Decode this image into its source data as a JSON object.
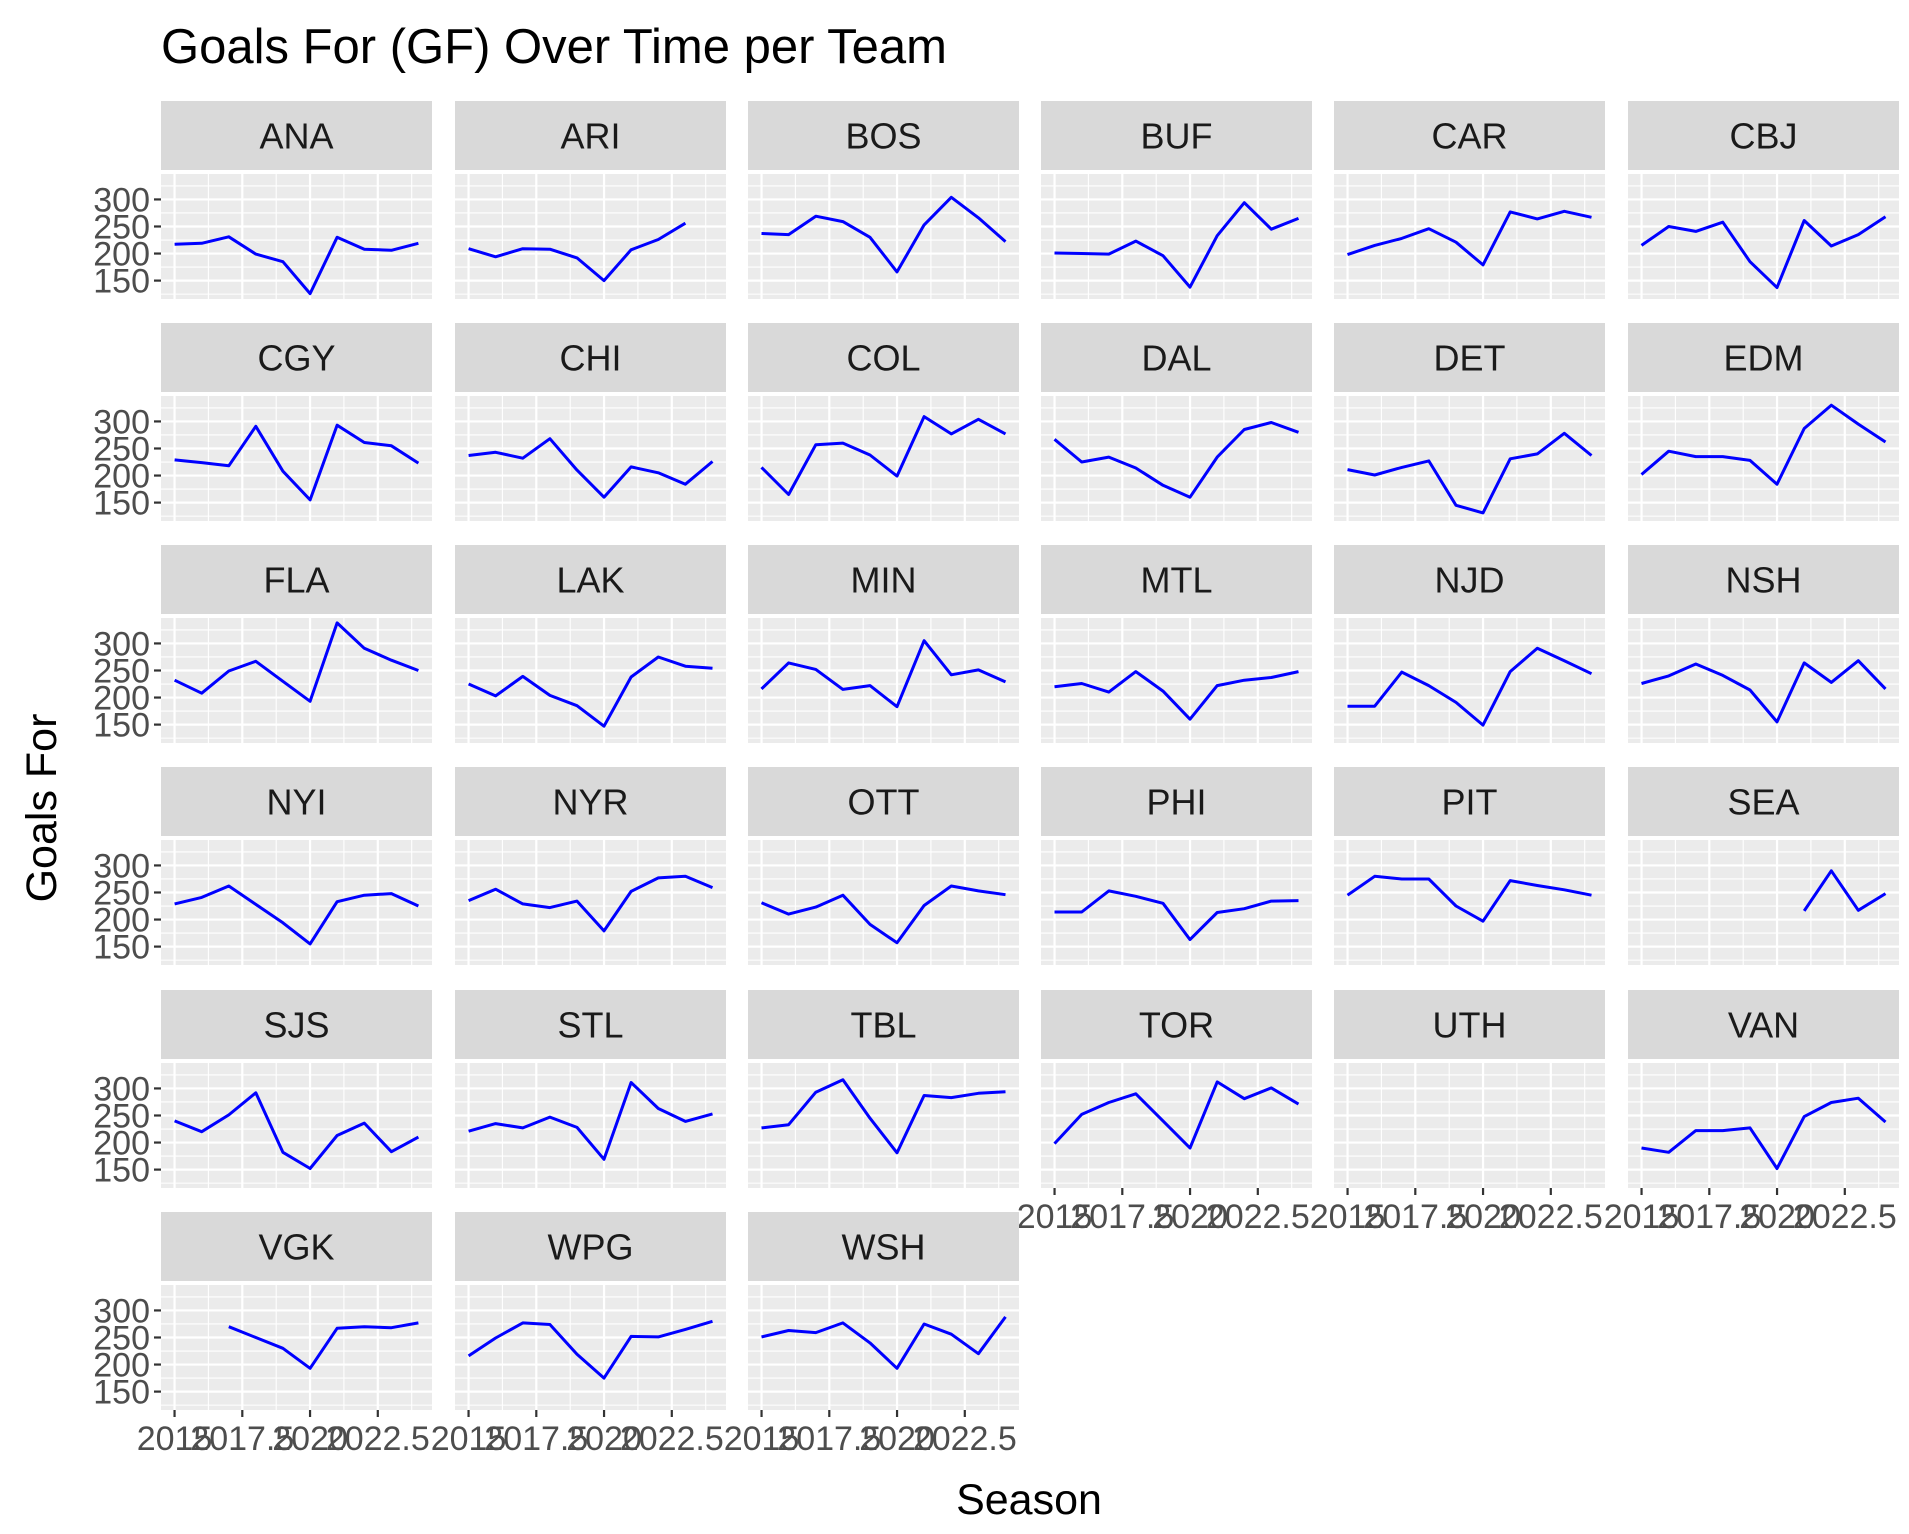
{
  "chart_data": {
    "type": "line",
    "title": "Goals For (GF) Over Time per Team",
    "xlabel": "Season",
    "ylabel": "Goals For",
    "line_color": "#0000ff",
    "panel_background": "#ebebeb",
    "strip_background": "#d9d9d9",
    "grid": true,
    "facet_layout": {
      "columns": 6,
      "rows": 6
    },
    "xlim": [
      2014.5,
      2024.5
    ],
    "ylim": [
      116,
      347
    ],
    "x_ticks": [
      2015,
      2017.5,
      2020,
      2022.5
    ],
    "x_tick_labels": [
      "2015",
      "2017.5",
      "2020",
      "2022.5"
    ],
    "y_ticks": [
      150,
      200,
      250,
      300
    ],
    "y_tick_labels": [
      "150",
      "200",
      "250",
      "300"
    ],
    "x": [
      2015,
      2016,
      2017,
      2018,
      2019,
      2020,
      2021,
      2022,
      2023,
      2024
    ],
    "panels": [
      {
        "team": "ANA",
        "values": [
          217,
          219,
          231,
          199,
          185,
          126,
          230,
          208,
          206,
          219
        ]
      },
      {
        "team": "ARI",
        "values": [
          209,
          194,
          209,
          208,
          192,
          150,
          207,
          226,
          256,
          null
        ]
      },
      {
        "team": "BOS",
        "values": [
          237,
          235,
          269,
          259,
          230,
          166,
          253,
          304,
          266,
          222
        ]
      },
      {
        "team": "BUF",
        "values": [
          201,
          200,
          199,
          223,
          196,
          138,
          233,
          294,
          245,
          265
        ]
      },
      {
        "team": "CAR",
        "values": [
          198,
          215,
          228,
          246,
          221,
          179,
          277,
          264,
          278,
          267
        ]
      },
      {
        "team": "CBJ",
        "values": [
          215,
          250,
          241,
          258,
          185,
          137,
          261,
          214,
          235,
          268
        ]
      },
      {
        "team": "CGY",
        "values": [
          229,
          224,
          218,
          291,
          208,
          155,
          293,
          261,
          255,
          223
        ]
      },
      {
        "team": "CHI",
        "values": [
          237,
          243,
          232,
          268,
          210,
          160,
          216,
          205,
          184,
          226
        ]
      },
      {
        "team": "COL",
        "values": [
          215,
          165,
          257,
          260,
          238,
          199,
          309,
          277,
          304,
          277
        ]
      },
      {
        "team": "DAL",
        "values": [
          267,
          225,
          234,
          214,
          182,
          160,
          234,
          285,
          298,
          280
        ]
      },
      {
        "team": "DET",
        "values": [
          211,
          201,
          215,
          227,
          145,
          131,
          231,
          240,
          278,
          237
        ]
      },
      {
        "team": "EDM",
        "values": [
          202,
          245,
          235,
          235,
          228,
          184,
          287,
          330,
          295,
          262
        ]
      },
      {
        "team": "FLA",
        "values": [
          232,
          208,
          249,
          267,
          230,
          193,
          338,
          291,
          269,
          250
        ]
      },
      {
        "team": "LAK",
        "values": [
          225,
          203,
          239,
          204,
          185,
          147,
          238,
          275,
          258,
          254
        ]
      },
      {
        "team": "MIN",
        "values": [
          216,
          264,
          252,
          215,
          222,
          183,
          305,
          242,
          251,
          229
        ]
      },
      {
        "team": "MTL",
        "values": [
          220,
          226,
          210,
          248,
          212,
          160,
          222,
          232,
          237,
          248
        ]
      },
      {
        "team": "NJD",
        "values": [
          184,
          184,
          247,
          222,
          191,
          149,
          248,
          291,
          268,
          244
        ]
      },
      {
        "team": "NSH",
        "values": [
          226,
          240,
          262,
          241,
          214,
          155,
          264,
          228,
          268,
          216
        ]
      },
      {
        "team": "NYI",
        "values": [
          229,
          241,
          262,
          228,
          194,
          155,
          233,
          245,
          248,
          225
        ]
      },
      {
        "team": "NYR",
        "values": [
          235,
          256,
          229,
          222,
          234,
          179,
          252,
          277,
          280,
          259
        ]
      },
      {
        "team": "OTT",
        "values": [
          231,
          210,
          223,
          245,
          191,
          157,
          226,
          262,
          253,
          246
        ]
      },
      {
        "team": "PHI",
        "values": [
          214,
          214,
          253,
          243,
          230,
          163,
          213,
          220,
          234,
          235
        ]
      },
      {
        "team": "PIT",
        "values": [
          245,
          280,
          275,
          275,
          225,
          197,
          272,
          263,
          255,
          245
        ]
      },
      {
        "team": "SEA",
        "values": [
          null,
          null,
          null,
          null,
          null,
          null,
          216,
          290,
          217,
          248
        ]
      },
      {
        "team": "SJS",
        "values": [
          240,
          220,
          251,
          292,
          182,
          152,
          213,
          236,
          183,
          210
        ]
      },
      {
        "team": "STL",
        "values": [
          221,
          235,
          227,
          247,
          228,
          169,
          311,
          263,
          239,
          253
        ]
      },
      {
        "team": "TBL",
        "values": [
          227,
          233,
          293,
          316,
          245,
          181,
          287,
          283,
          291,
          294
        ]
      },
      {
        "team": "TOR",
        "values": [
          198,
          252,
          274,
          290,
          240,
          190,
          312,
          281,
          301,
          271
        ]
      },
      {
        "team": "UTH",
        "values": [
          null,
          null,
          null,
          null,
          null,
          null,
          null,
          null,
          null,
          null
        ]
      },
      {
        "team": "VAN",
        "values": [
          190,
          182,
          222,
          222,
          227,
          152,
          248,
          274,
          282,
          238
        ]
      },
      {
        "team": "VGK",
        "values": [
          null,
          null,
          270,
          250,
          230,
          193,
          267,
          270,
          268,
          277
        ]
      },
      {
        "team": "WPG",
        "values": [
          216,
          249,
          277,
          274,
          219,
          175,
          252,
          251,
          265,
          280
        ]
      },
      {
        "team": "WSH",
        "values": [
          251,
          263,
          259,
          277,
          240,
          193,
          275,
          256,
          220,
          288
        ]
      }
    ]
  }
}
